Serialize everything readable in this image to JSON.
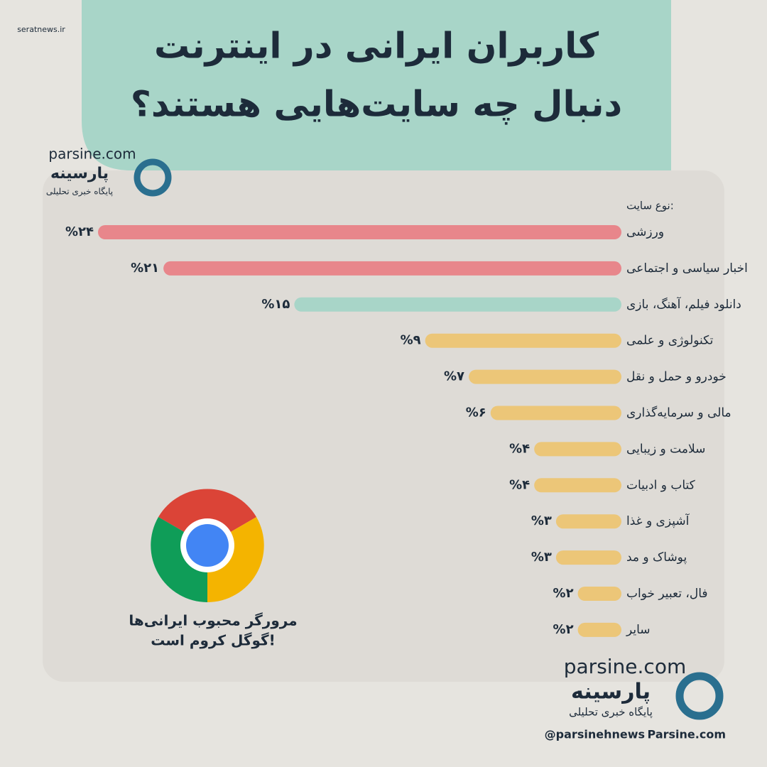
{
  "chart_data": {
    "type": "bar",
    "orientation": "horizontal",
    "title": [
      "کاربران ایرانی در اینترنت",
      "دنبال چه سایت‌هایی هستند؟"
    ],
    "category_label": "نوع سایت:",
    "categories": [
      "ورزشی",
      "اخبار سیاسی و اجتماعی",
      "دانلود فیلم، آهنگ، بازی",
      "تکنولوژی و علمی",
      "خودرو و حمل و نقل",
      "مالی و سرمایه‌گذاری",
      "سلامت و زیبایی",
      "کتاب و ادبیات",
      "آشپزی و غذا",
      "پوشاک و مد",
      "فال، تعبیر خواب",
      "سایر"
    ],
    "values": [
      24,
      21,
      15,
      9,
      7,
      6,
      4,
      4,
      3,
      3,
      2,
      2
    ],
    "value_labels": [
      "%۲۴",
      "%۲۱",
      "%۱۵",
      "%۹",
      "%۷",
      "%۶",
      "%۴",
      "%۴",
      "%۳",
      "%۳",
      "%۲",
      "%۲"
    ],
    "colors": [
      "#e8868b",
      "#e8868b",
      "#a8d5c8",
      "#ecc678",
      "#ecc678",
      "#ecc678",
      "#ecc678",
      "#ecc678",
      "#ecc678",
      "#ecc678",
      "#ecc678",
      "#ecc678"
    ]
  },
  "note": [
    "مرورگر محبوب ایرانی‌ها",
    "گوگل کروم است!"
  ],
  "brand": {
    "site": "parsine.com",
    "name": "پارسینه",
    "tagline": "پایگاه خبری تحلیلی",
    "handle": "@parsinehnews",
    "domain": "Parsine.com",
    "watermark": "seratnews.ir"
  }
}
